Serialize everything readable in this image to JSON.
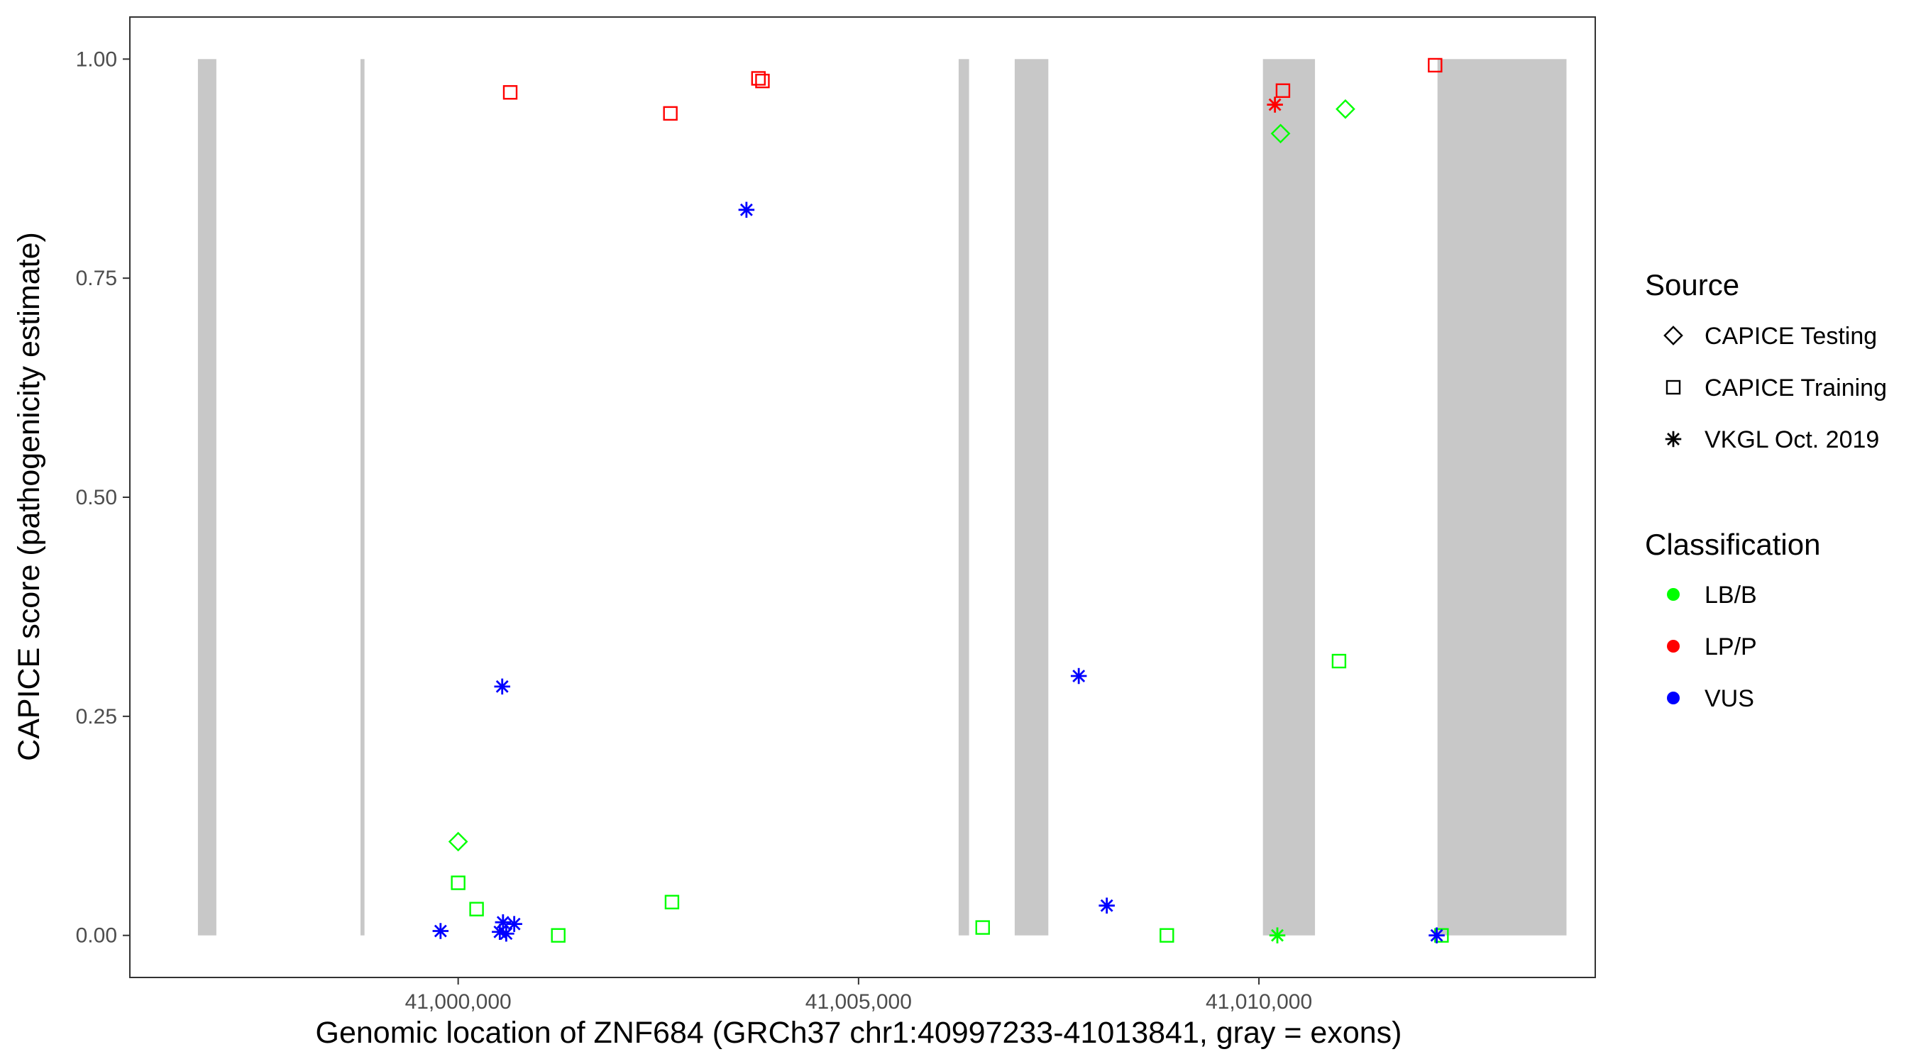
{
  "chart_data": {
    "type": "scatter",
    "title": "",
    "xlabel": "Genomic location of ZNF684 (GRCh37 chr1:40997233-41013841, gray = exons)",
    "ylabel": "CAPICE score (pathogenicity estimate)",
    "xlim": [
      40995900,
      41014200
    ],
    "ylim": [
      -0.048,
      1.048
    ],
    "grid": false,
    "x_ticks": [
      {
        "value": 41000000,
        "label": "41,000,000"
      },
      {
        "value": 41005000,
        "label": "41,005,000"
      },
      {
        "value": 41010000,
        "label": "41,010,000"
      }
    ],
    "y_ticks": [
      {
        "value": 0.0,
        "label": "0.00"
      },
      {
        "value": 0.25,
        "label": "0.25"
      },
      {
        "value": 0.5,
        "label": "0.50"
      },
      {
        "value": 0.75,
        "label": "0.75"
      },
      {
        "value": 1.0,
        "label": "1.00"
      }
    ],
    "exons": [
      {
        "start": 40996750,
        "end": 40996980
      },
      {
        "start": 40998780,
        "end": 40998830
      },
      {
        "start": 41006250,
        "end": 41006380
      },
      {
        "start": 41006950,
        "end": 41007370
      },
      {
        "start": 41010050,
        "end": 41010700
      },
      {
        "start": 41012230,
        "end": 41013841
      }
    ],
    "legend": {
      "source_title": "Source",
      "source_items": [
        {
          "shape": "diamond",
          "label": "CAPICE Testing"
        },
        {
          "shape": "square",
          "label": "CAPICE Training"
        },
        {
          "shape": "asterisk",
          "label": "VKGL Oct. 2019"
        }
      ],
      "class_title": "Classification",
      "class_items": [
        {
          "color": "#00ff00",
          "label": "LB/B"
        },
        {
          "color": "#ff0000",
          "label": "LP/P"
        },
        {
          "color": "#0000ff",
          "label": "VUS"
        }
      ]
    },
    "colors": {
      "LB/B": "#00ff00",
      "LP/P": "#ff0000",
      "VUS": "#0000ff",
      "exon": "#c8c8c8"
    },
    "points": [
      {
        "x": 41000650,
        "y": 0.962,
        "source": "CAPICE Training",
        "class": "LP/P"
      },
      {
        "x": 41002650,
        "y": 0.938,
        "source": "CAPICE Training",
        "class": "LP/P"
      },
      {
        "x": 41003750,
        "y": 0.978,
        "source": "CAPICE Training",
        "class": "LP/P"
      },
      {
        "x": 41003800,
        "y": 0.975,
        "source": "CAPICE Training",
        "class": "LP/P"
      },
      {
        "x": 41010300,
        "y": 0.964,
        "source": "CAPICE Training",
        "class": "LP/P"
      },
      {
        "x": 41012200,
        "y": 0.993,
        "source": "CAPICE Training",
        "class": "LP/P"
      },
      {
        "x": 41010200,
        "y": 0.948,
        "source": "VKGL Oct. 2019",
        "class": "LP/P"
      },
      {
        "x": 41010270,
        "y": 0.915,
        "source": "CAPICE Testing",
        "class": "LB/B"
      },
      {
        "x": 41011080,
        "y": 0.943,
        "source": "CAPICE Testing",
        "class": "LB/B"
      },
      {
        "x": 41003600,
        "y": 0.828,
        "source": "VKGL Oct. 2019",
        "class": "VUS"
      },
      {
        "x": 41000550,
        "y": 0.284,
        "source": "VKGL Oct. 2019",
        "class": "VUS"
      },
      {
        "x": 41007750,
        "y": 0.296,
        "source": "VKGL Oct. 2019",
        "class": "VUS"
      },
      {
        "x": 41011000,
        "y": 0.313,
        "source": "CAPICE Training",
        "class": "LB/B"
      },
      {
        "x": 41000000,
        "y": 0.107,
        "source": "CAPICE Testing",
        "class": "LB/B"
      },
      {
        "x": 41000000,
        "y": 0.06,
        "source": "CAPICE Training",
        "class": "LB/B"
      },
      {
        "x": 41000230,
        "y": 0.03,
        "source": "CAPICE Training",
        "class": "LB/B"
      },
      {
        "x": 41001250,
        "y": 0.0,
        "source": "CAPICE Training",
        "class": "LB/B"
      },
      {
        "x": 41002670,
        "y": 0.038,
        "source": "CAPICE Training",
        "class": "LB/B"
      },
      {
        "x": 41006550,
        "y": 0.009,
        "source": "CAPICE Training",
        "class": "LB/B"
      },
      {
        "x": 41008850,
        "y": 0.0,
        "source": "CAPICE Training",
        "class": "LB/B"
      },
      {
        "x": 41012280,
        "y": 0.0,
        "source": "CAPICE Training",
        "class": "LB/B"
      },
      {
        "x": 41010230,
        "y": 0.0,
        "source": "VKGL Oct. 2019",
        "class": "LB/B"
      },
      {
        "x": 40999780,
        "y": 0.005,
        "source": "VKGL Oct. 2019",
        "class": "VUS"
      },
      {
        "x": 41000560,
        "y": 0.015,
        "source": "VKGL Oct. 2019",
        "class": "VUS"
      },
      {
        "x": 41000700,
        "y": 0.013,
        "source": "VKGL Oct. 2019",
        "class": "VUS"
      },
      {
        "x": 41000520,
        "y": 0.004,
        "source": "VKGL Oct. 2019",
        "class": "VUS"
      },
      {
        "x": 41000600,
        "y": 0.002,
        "source": "VKGL Oct. 2019",
        "class": "VUS"
      },
      {
        "x": 41008100,
        "y": 0.034,
        "source": "VKGL Oct. 2019",
        "class": "VUS"
      },
      {
        "x": 41012220,
        "y": 0.0,
        "source": "VKGL Oct. 2019",
        "class": "VUS"
      }
    ]
  }
}
